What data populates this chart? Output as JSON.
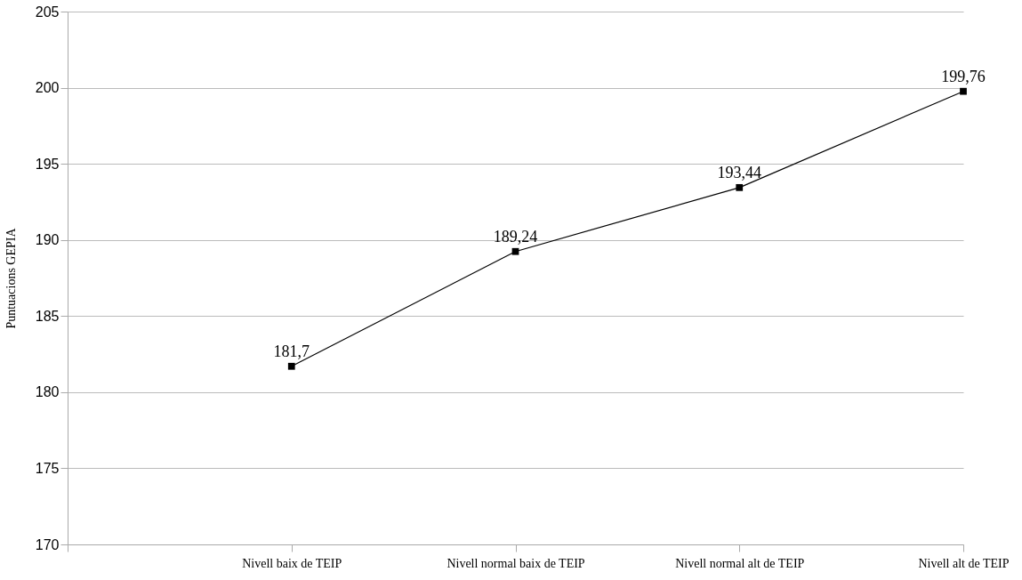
{
  "chart_data": {
    "type": "line",
    "ylabel": "Puntuacions GEPIA",
    "categories": [
      null,
      "Nivell baix de TEIP",
      "Nivell normal baix de TEIP",
      "Nivell normal alt de TEIP",
      "Nivell alt de TEIP"
    ],
    "series": [
      {
        "color": "#000000",
        "values": [
          null,
          181.7,
          189.24,
          193.44,
          199.76
        ],
        "value_labels": [
          null,
          "181,7",
          "189,24",
          "193,44",
          "199,76"
        ]
      }
    ],
    "ylim": [
      170,
      205
    ],
    "yticks": [
      170,
      175,
      180,
      185,
      190,
      195,
      200,
      205
    ],
    "grid": "y",
    "marker": "square",
    "line_style": "solid"
  }
}
